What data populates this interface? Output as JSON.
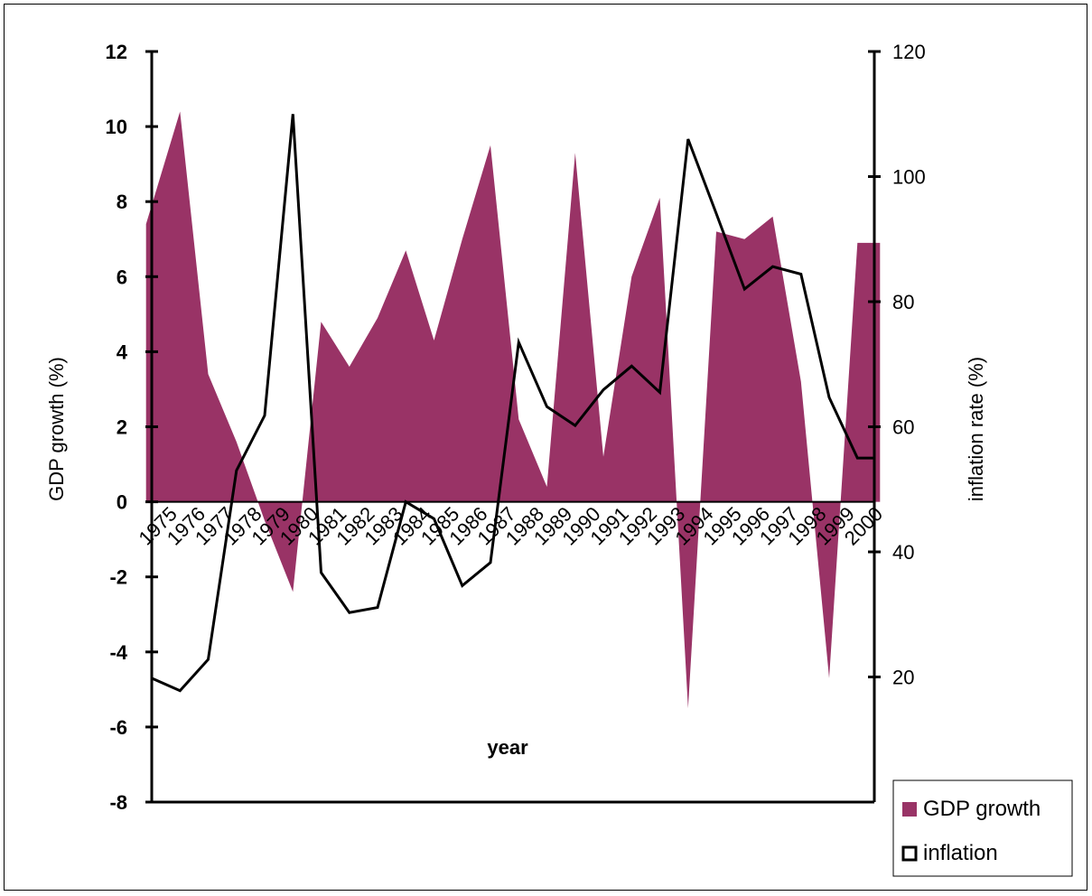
{
  "chart_data": {
    "type": "area",
    "x_axis": {
      "title": "year",
      "categories": [
        "1975",
        "1976",
        "1977",
        "1978",
        "1979",
        "1980",
        "1981",
        "1982",
        "1983",
        "1984",
        "1985",
        "1986",
        "1987",
        "1988",
        "1989",
        "1990",
        "1991",
        "1992",
        "1993",
        "1994",
        "1995",
        "1996",
        "1997",
        "1998",
        "1999",
        "2000"
      ]
    },
    "y_left": {
      "title": "GDP growth (%)",
      "min": -8,
      "max": 12,
      "step": 2,
      "ticks": [
        "-8",
        "-6",
        "-4",
        "-2",
        "0",
        "2",
        "4",
        "6",
        "8",
        "10",
        "12"
      ]
    },
    "y_right": {
      "title": "inflation rate (%)",
      "min": 0,
      "max": 120,
      "step": 20,
      "ticks": [
        "20",
        "40",
        "60",
        "80",
        "100",
        "120"
      ]
    },
    "series": [
      {
        "name": "GDP growth",
        "type": "area",
        "axis": "left",
        "color": "#993366",
        "x": [
          1974.8,
          1976,
          1977,
          1978,
          1979,
          1980,
          1981,
          1982,
          1983,
          1984,
          1985,
          1986,
          1987,
          1988,
          1989,
          1990,
          1991,
          1992,
          1993,
          1994,
          1995,
          1996,
          1997,
          1998,
          1999,
          2000,
          2000.8
        ],
        "values": [
          7.4,
          10.4,
          3.4,
          1.6,
          -0.5,
          -2.4,
          4.8,
          3.6,
          4.9,
          6.7,
          4.3,
          7.0,
          9.5,
          2.2,
          0.4,
          9.3,
          1.2,
          6.0,
          8.1,
          -5.5,
          7.2,
          7.0,
          7.6,
          3.2,
          -4.7,
          6.9,
          6.9
        ]
      },
      {
        "name": "inflation",
        "type": "line",
        "axis": "right",
        "color": "#000000",
        "x": [
          1975,
          1976,
          1977,
          1978,
          1979,
          1980,
          1981,
          1982,
          1983,
          1984,
          1985,
          1986,
          1987,
          1988,
          1989,
          1990,
          1991,
          1992,
          1993,
          1994,
          1995,
          1996,
          1997,
          1998,
          1999,
          2000,
          2000.6
        ],
        "values": [
          19.8,
          17.8,
          22.8,
          53.0,
          61.8,
          110.0,
          36.7,
          30.3,
          31.1,
          48.0,
          45.3,
          34.6,
          38.3,
          73.5,
          63.2,
          60.2,
          65.9,
          69.7,
          65.5,
          106.0,
          94.1,
          82.0,
          85.6,
          84.4,
          64.7,
          55.0,
          55.0
        ]
      }
    ],
    "legend": {
      "position": "bottom-right",
      "items": [
        {
          "label": "GDP growth",
          "swatch": "filled",
          "color": "#993366"
        },
        {
          "label": "inflation",
          "swatch": "outline",
          "color": "#000000"
        }
      ]
    }
  }
}
